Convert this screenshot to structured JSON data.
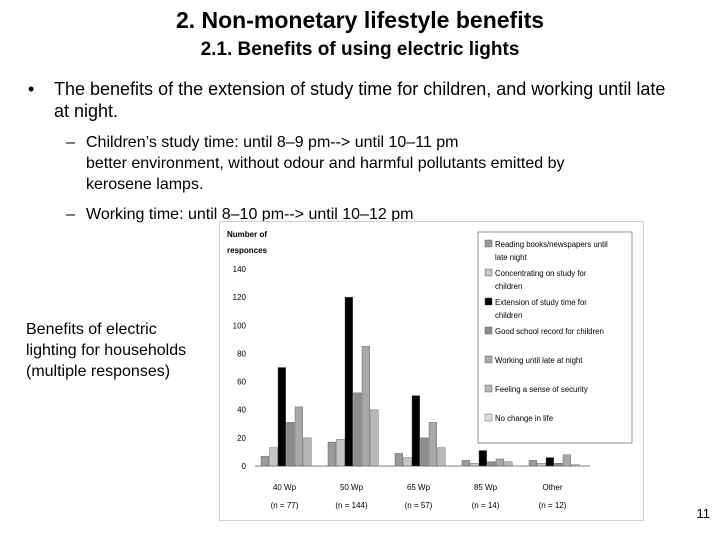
{
  "slide": {
    "title": "2. Non-monetary lifestyle benefits",
    "subtitle": "2.1. Benefits of using electric lights",
    "bullet_mark": "•",
    "bullet": "The benefits of the extension of study time for children, and working until late at night.",
    "dash_mark": "–",
    "sub1": "Children’s study time: until 8–9 pm--> until 10–11 pm",
    "sub1_cont1": "better environment, without odour and harmful pollutants emitted by",
    "sub1_cont2": "kerosene lamps.",
    "sub2": "Working time: until 8–10 pm--> until 10–12 pm",
    "side_caption": [
      "Benefits of electric",
      "lighting for households",
      "(multiple responses)"
    ],
    "page_number": "11"
  },
  "chart_data": {
    "type": "bar",
    "ylabel_lines": [
      "Number of",
      "responces"
    ],
    "ylim": [
      0,
      140
    ],
    "yticks": [
      0,
      20,
      40,
      60,
      80,
      100,
      120,
      140
    ],
    "categories": [
      "40 Wp",
      "50 Wp",
      "65 Wp",
      "85 Wp",
      "Other"
    ],
    "category_n": [
      "(n = 77)",
      "(n = 144)",
      "(n = 57)",
      "(n = 14)",
      "(n = 12)"
    ],
    "series": [
      {
        "name": "Reading books/newspapers until late night",
        "color": "#9a9a9a",
        "values": [
          7,
          17,
          9,
          4,
          4
        ]
      },
      {
        "name": "Concentrating on study for children",
        "color": "#c4c4c4",
        "values": [
          13,
          19,
          6,
          2,
          2
        ]
      },
      {
        "name": "Extension of study time for children",
        "color": "#000000",
        "values": [
          70,
          120,
          50,
          11,
          6
        ]
      },
      {
        "name": "Good school record for children",
        "color": "#8c8c8c",
        "values": [
          31,
          52,
          20,
          3,
          2
        ]
      },
      {
        "name": "Working until late at night",
        "color": "#a8a8a8",
        "values": [
          42,
          85,
          31,
          5,
          8
        ]
      },
      {
        "name": "Feeling a sense of security",
        "color": "#b8b8b8",
        "values": [
          20,
          40,
          13,
          3,
          1
        ]
      },
      {
        "name": "No change in life",
        "color": "#e0e0e0",
        "values": [
          0,
          0,
          0,
          0,
          0
        ]
      }
    ],
    "grid": false,
    "legend_position": "right"
  }
}
